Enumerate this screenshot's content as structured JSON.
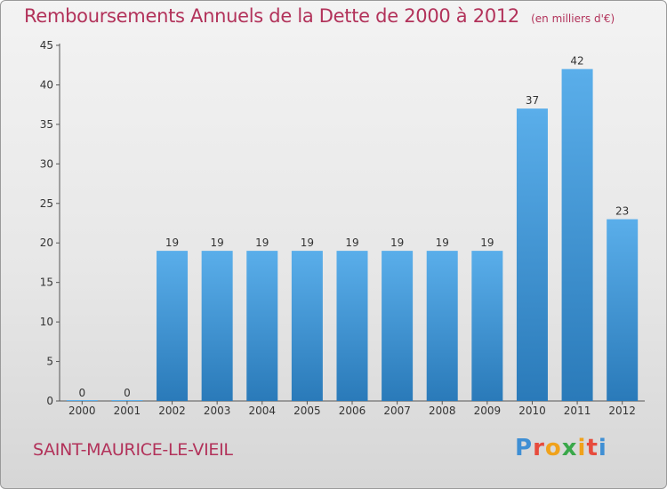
{
  "header": {
    "title": "Remboursements Annuels de la Dette de 2000 à 2012",
    "unit": "(en milliers d'€)"
  },
  "footer": {
    "commune": "SAINT-MAURICE-LE-VIEIL",
    "logo": "Proxiti"
  },
  "colors": {
    "title": "#b2325a",
    "bar_top": "#5aaeea",
    "bar_bottom": "#2a7ab9",
    "background": "#ececec"
  },
  "chart_data": {
    "type": "bar",
    "title": "Remboursements Annuels de la Dette de 2000 à 2012",
    "subtitle": "(en milliers d'€)",
    "xlabel": "",
    "ylabel": "",
    "categories": [
      "2000",
      "2001",
      "2002",
      "2003",
      "2004",
      "2005",
      "2006",
      "2007",
      "2008",
      "2009",
      "2010",
      "2011",
      "2012"
    ],
    "values": [
      0,
      0,
      19,
      19,
      19,
      19,
      19,
      19,
      19,
      19,
      37,
      42,
      23
    ],
    "ylim": [
      0,
      45
    ],
    "yticks": [
      0,
      5,
      10,
      15,
      20,
      25,
      30,
      35,
      40,
      45
    ],
    "grid": false,
    "data_labels": true
  }
}
